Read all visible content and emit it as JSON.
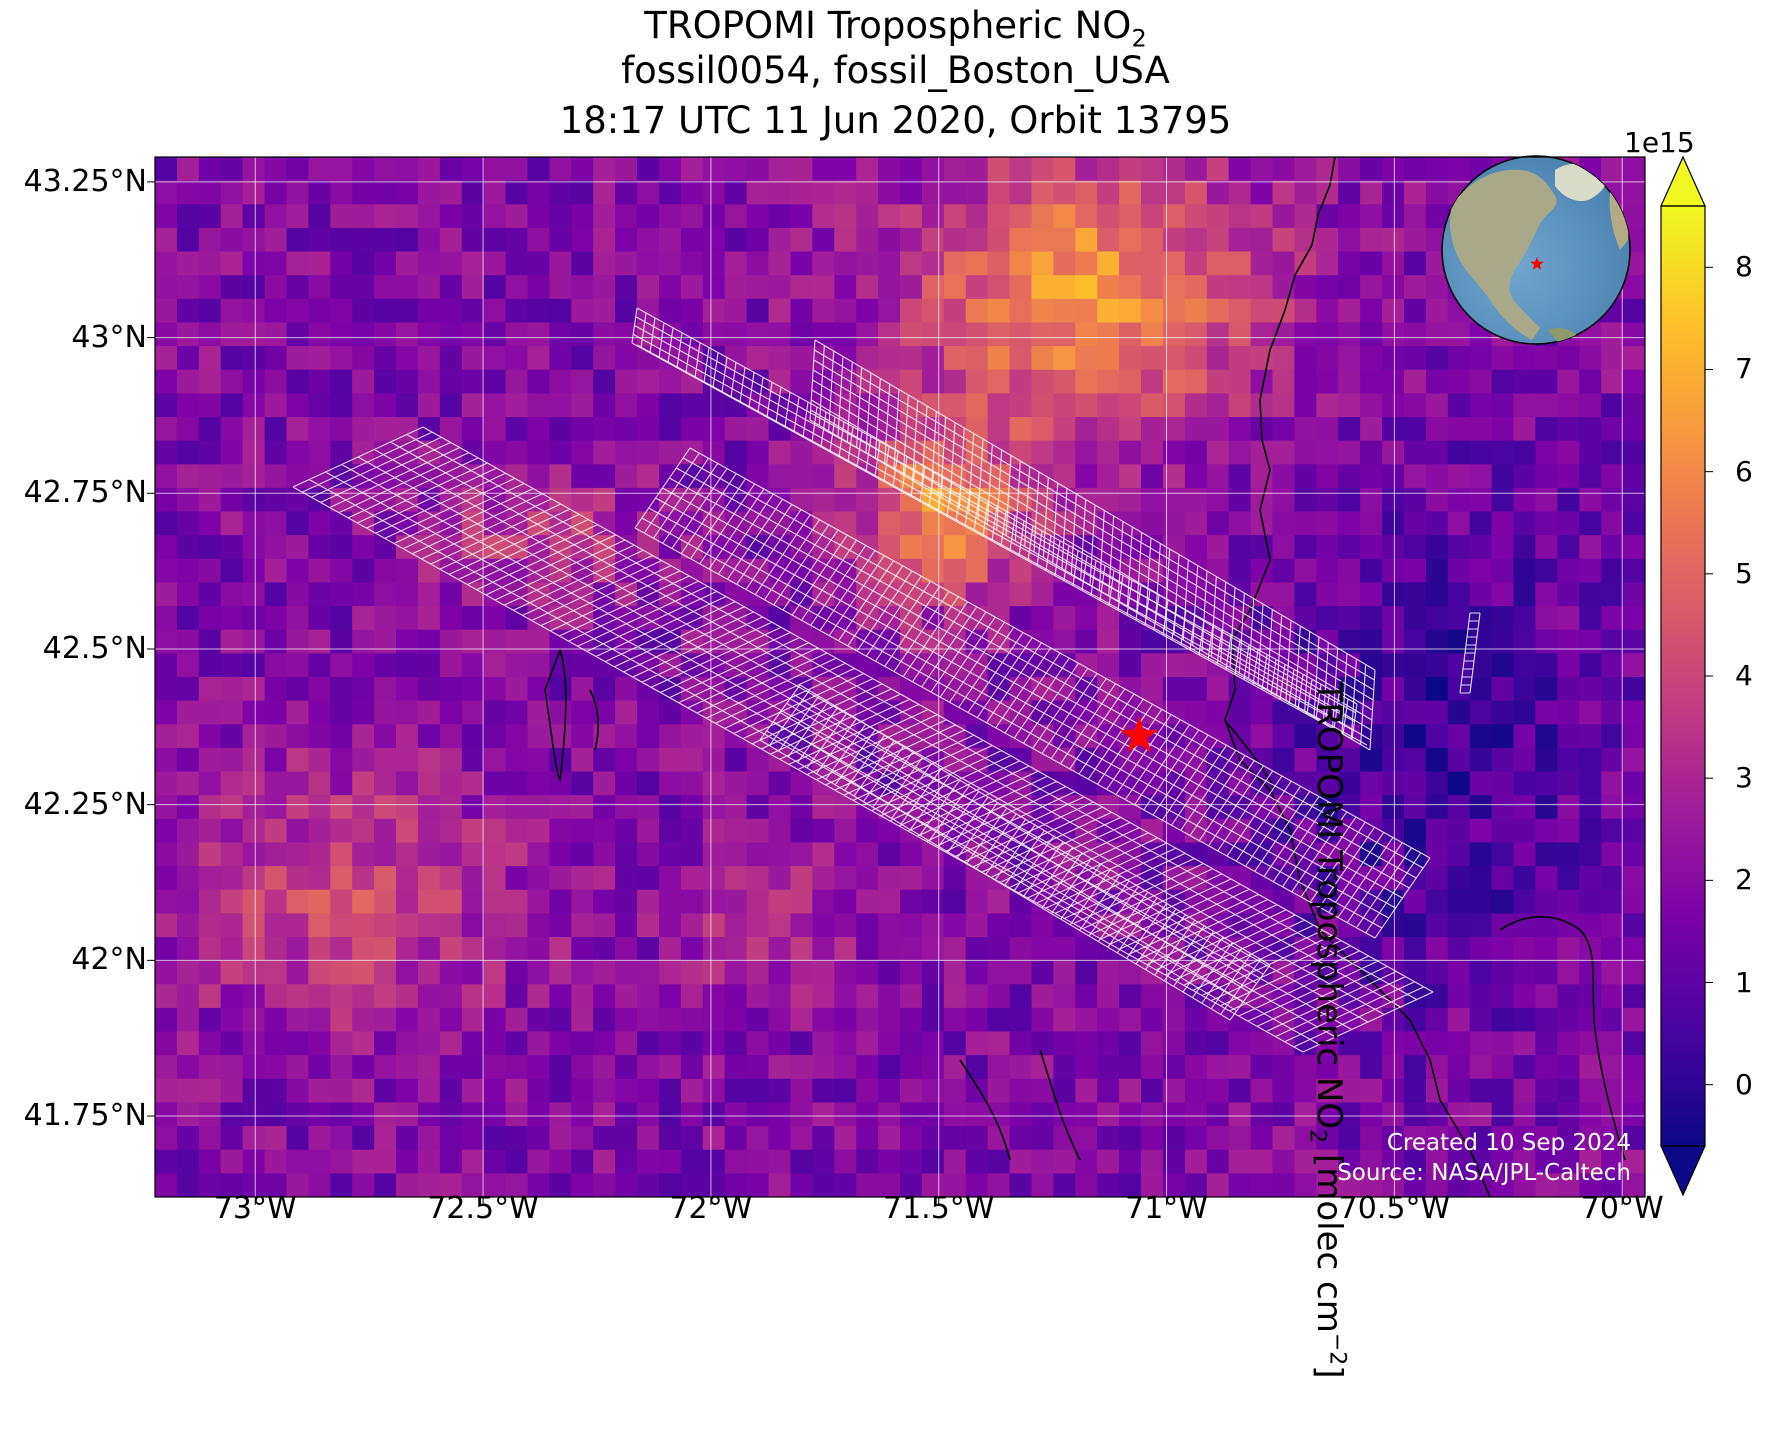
{
  "title": {
    "line1_prefix": "TROPOMI Tropospheric NO",
    "line1_sub": "2",
    "line2": "fossil0054, fossil_Boston_USA",
    "line3": "18:17 UTC 11 Jun 2020, Orbit 13795"
  },
  "map": {
    "lon_range": [
      -73.22,
      -69.95
    ],
    "lat_range": [
      41.62,
      43.29
    ],
    "x_ticks": [
      "73°W",
      "72.5°W",
      "72°W",
      "71.5°W",
      "71°W",
      "70.5°W",
      "70°W"
    ],
    "x_tick_values": [
      -73.0,
      -72.5,
      -72.0,
      -71.5,
      -71.0,
      -70.5,
      -70.0
    ],
    "y_ticks": [
      "43.25°N",
      "43°N",
      "42.75°N",
      "42.5°N",
      "42.25°N",
      "42°N",
      "41.75°N"
    ],
    "y_tick_values": [
      43.25,
      43.0,
      42.75,
      42.5,
      42.25,
      42.0,
      41.75
    ],
    "gridlines": true,
    "target": {
      "name": "fossil_Boston_USA",
      "lon": -71.06,
      "lat": 42.36,
      "color": "#ff0000"
    },
    "inset_globe": "north-america-globe-with-red-star",
    "credits": [
      "Created 10 Sep 2024",
      "Source: NASA/JPL-Caltech"
    ]
  },
  "colorbar": {
    "label_prefix": "TROPOMI Tropospheric NO",
    "label_sub": "2",
    "label_suffix": " [molec cm",
    "label_sup": "−2",
    "label_end": "]",
    "exponent": "1e15",
    "range": [
      -0.6,
      8.6
    ],
    "ticks": [
      "8",
      "7",
      "6",
      "5",
      "4",
      "3",
      "2",
      "1",
      "0"
    ],
    "tick_values": [
      8,
      7,
      6,
      5,
      4,
      3,
      2,
      1,
      0
    ],
    "colormap": "plasma",
    "extend": "both"
  }
}
